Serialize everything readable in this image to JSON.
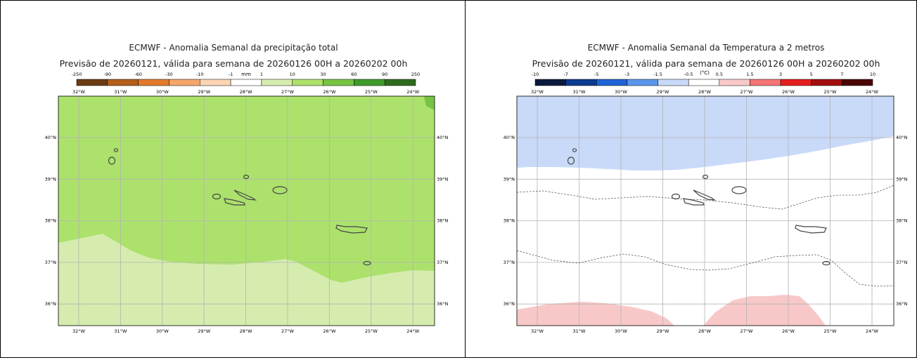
{
  "panels": [
    {
      "title": "ECMWF - Anomalia Semanal da precipitação total",
      "subtitle": "Previsão de 20260121, válida para semana de 20260126 00H a 20260202 00h",
      "colorbar": {
        "unit": "mm",
        "labels": [
          "-250",
          "-90",
          "-60",
          "-30",
          "-10",
          "-1",
          "1",
          "10",
          "30",
          "60",
          "90",
          "250"
        ],
        "colors": [
          "#6b3b14",
          "#b35f1c",
          "#e27a2b",
          "#f4a66a",
          "#fbd4b4",
          "#ffffff",
          "#d6edb0",
          "#aee06a",
          "#76c442",
          "#3f9a2a",
          "#2f6b1e"
        ]
      },
      "lon_labels": [
        "32°W",
        "31°W",
        "30°W",
        "29°W",
        "28°W",
        "27°W",
        "26°W",
        "25°W",
        "24°W"
      ],
      "lat_labels": [
        "40°N",
        "39°N",
        "38°N",
        "37°N",
        "36°N"
      ],
      "fill_colors": {
        "main": "#ace16c",
        "south": "#d5ecae",
        "corner": "#77c445"
      }
    },
    {
      "title": "ECMWF - Anomalia Semanal da Temperatura a 2 metros",
      "subtitle": "Previsão de 20260121, válida para semana de 20260126 00H a 20260202 00h",
      "colorbar": {
        "unit": "(°C)",
        "labels": [
          "-10",
          "-7",
          "-5",
          "-3",
          "-1.5",
          "-0.5",
          "0.5",
          "1.5",
          "3",
          "5",
          "7",
          "10"
        ],
        "colors": [
          "#0a1a3c",
          "#0b3a8f",
          "#1f63d6",
          "#5b95ec",
          "#c9d9f8",
          "#ffffff",
          "#f9c9c9",
          "#f47575",
          "#e51f1f",
          "#a10e0e",
          "#4a0505"
        ]
      },
      "lon_labels": [
        "32°W",
        "31°W",
        "30°W",
        "29°W",
        "28°W",
        "27°W",
        "26°W",
        "25°W",
        "24°W"
      ],
      "lat_labels": [
        "40°N",
        "39°N",
        "38°N",
        "37°N",
        "36°N"
      ],
      "fill_colors": {
        "north": "#c9d9f8",
        "south": "#f8c8c8"
      }
    }
  ]
}
